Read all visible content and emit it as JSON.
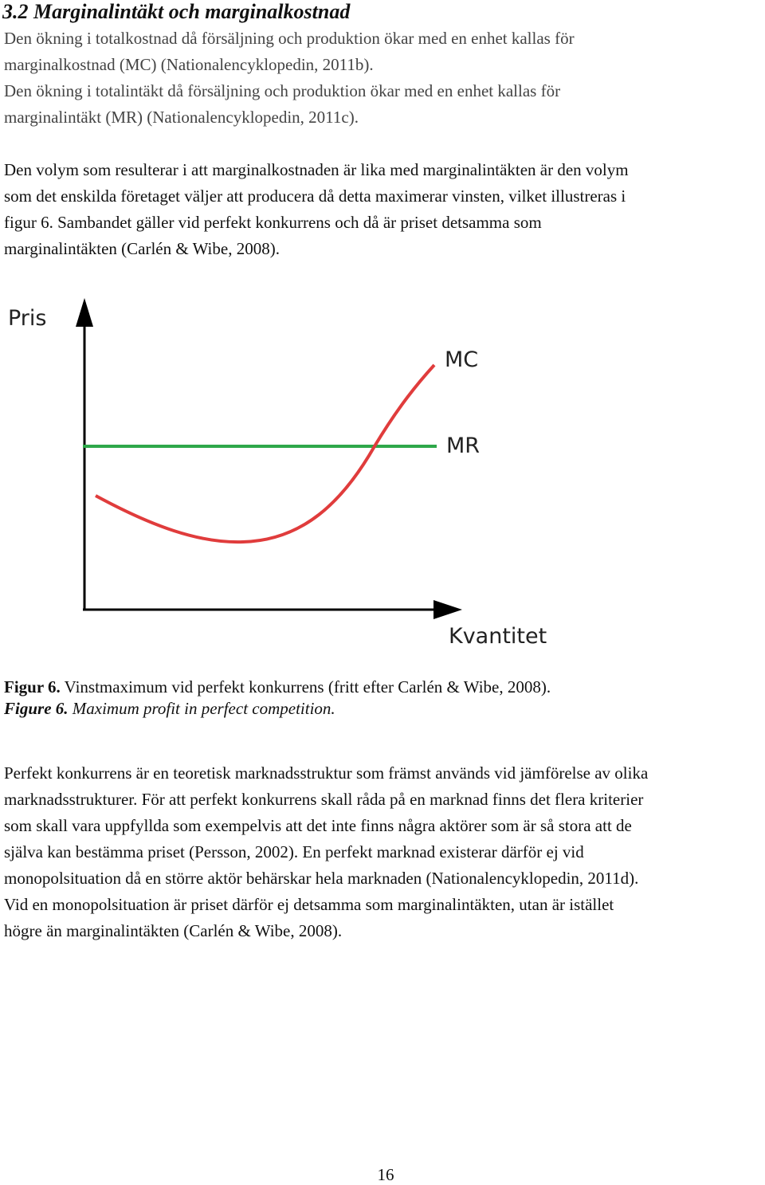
{
  "heading": "3.2 Marginalintäkt och marginalkostnad",
  "paragraphs": [
    {
      "lines": [
        "Den ökning i totalkostnad då försäljning och produktion ökar med en enhet kallas för",
        "marginalkostnad (MC) (Nationalencyklopedin, 2011b).",
        "Den ökning i totalintäkt då försäljning och produktion ökar med en enhet kallas för",
        "marginalintäkt (MR) (Nationalencyklopedin, 2011c)."
      ]
    },
    {
      "lines": [
        "Den volym som resulterar i att marginalkostnaden är lika med marginalintäkten är den volym",
        "som det enskilda företaget väljer att producera då detta maximerar vinsten, vilket illustreras i",
        "figur 6. Sambandet gäller vid perfekt konkurrens och då är priset detsamma som",
        "marginalintäkten (Carlén & Wibe, 2008)."
      ]
    },
    {
      "lines": [
        "Perfekt konkurrens är en teoretisk marknadsstruktur som främst används vid jämförelse av olika",
        "marknadsstrukturer. För att perfekt konkurrens skall råda på en marknad finns det flera kriterier",
        "som skall vara uppfyllda som exempelvis att det inte finns några aktörer som är så stora att de",
        "själva kan bestämma priset (Persson, 2002). En perfekt marknad existerar därför ej vid",
        "monopolsituation då en större aktör behärskar hela marknaden (Nationalencyklopedin, 2011d).",
        "Vid en monopolsituation är priset därför ej detsamma som marginalintäkten, utan är istället",
        "högre än marginalintäkten (Carlén & Wibe, 2008)."
      ]
    }
  ],
  "figure": {
    "y_axis_label": "Pris",
    "x_axis_label": "Kvantitet",
    "curves": [
      {
        "label": "MC"
      },
      {
        "label": "MR"
      }
    ]
  },
  "caption": {
    "swedish": {
      "label": "Figur 6.",
      "text": "Vinstmaximum vid perfekt konkurrens (fritt efter Carlén & Wibe, 2008)."
    },
    "english": {
      "label": "Figure 6.",
      "text": "Maximum profit in perfect competition."
    }
  },
  "page_number": "16"
}
